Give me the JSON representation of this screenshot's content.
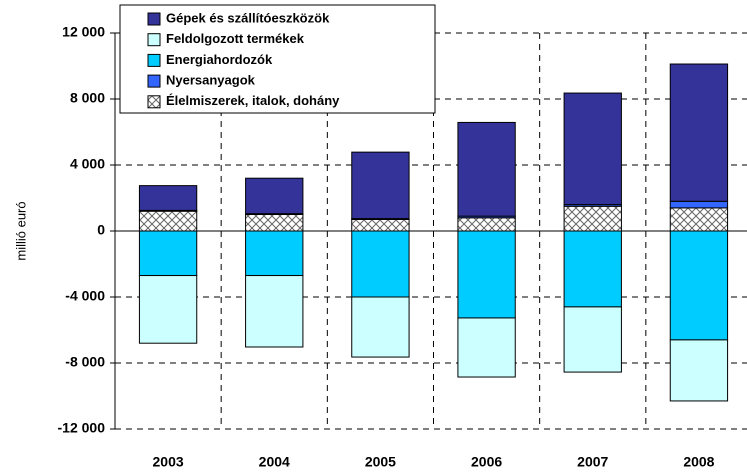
{
  "chart_data": {
    "type": "stacked_bar",
    "y_axis_label": "millió euró",
    "categories": [
      "2003",
      "2004",
      "2005",
      "2006",
      "2007",
      "2008"
    ],
    "series": [
      {
        "name": "Gépek és szállítóeszközök",
        "color": "#333399",
        "values": [
          1500,
          2150,
          4030,
          5680,
          6760,
          8320
        ]
      },
      {
        "name": "Feldolgozott termékek",
        "color": "#ccffff",
        "values": [
          -4100,
          -4330,
          -3640,
          -3580,
          -3950,
          -3700
        ]
      },
      {
        "name": "Energiahordozók",
        "color": "#00ccff",
        "values": [
          -2700,
          -2700,
          -4000,
          -5270,
          -4600,
          -6600
        ]
      },
      {
        "name": "Nyersanyagok",
        "color": "#3366ff",
        "values": [
          50,
          50,
          50,
          100,
          100,
          400
        ]
      },
      {
        "name": "Élelmiszerek, italok, dohány",
        "color": "#ffffff",
        "pattern": "crosshatch",
        "values": [
          1200,
          1000,
          700,
          800,
          1500,
          1400
        ]
      }
    ],
    "ylim": [
      -12000,
      12000
    ],
    "yticks": [
      {
        "value": -12000,
        "label": "-12 000"
      },
      {
        "value": -8000,
        "label": "-8 000"
      },
      {
        "value": -4000,
        "label": "-4 000"
      },
      0,
      {
        "value": 4000,
        "label": "4 000"
      },
      {
        "value": 8000,
        "label": "8 000"
      },
      {
        "value": 12000,
        "label": "12 000"
      }
    ],
    "grid": true
  }
}
